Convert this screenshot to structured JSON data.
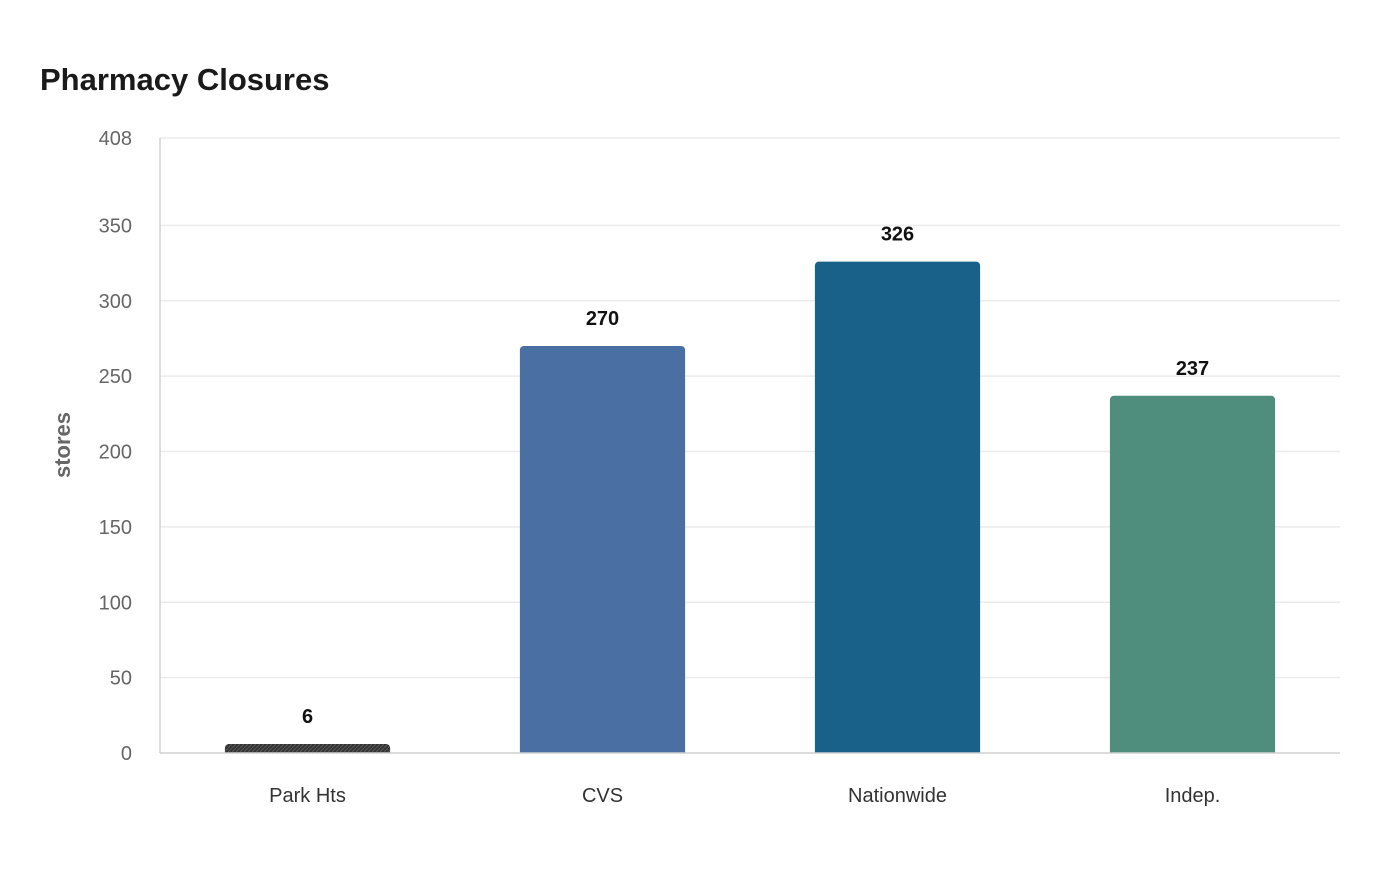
{
  "chart_data": {
    "type": "bar",
    "title": "Pharmacy Closures",
    "xlabel": "",
    "ylabel": "stores",
    "categories": [
      "Park Hts",
      "CVS",
      "Nationwide",
      "Indep."
    ],
    "values": [
      6,
      270,
      326,
      237
    ],
    "ylim": [
      0,
      408
    ],
    "yticks": [
      0,
      50,
      100,
      150,
      200,
      250,
      300,
      350,
      408
    ],
    "grid": true,
    "legend": "none",
    "colors": [
      "#333333",
      "#4a6fa3",
      "#196188",
      "#4f8e7c"
    ],
    "highlight_pattern": "Park Hts"
  }
}
